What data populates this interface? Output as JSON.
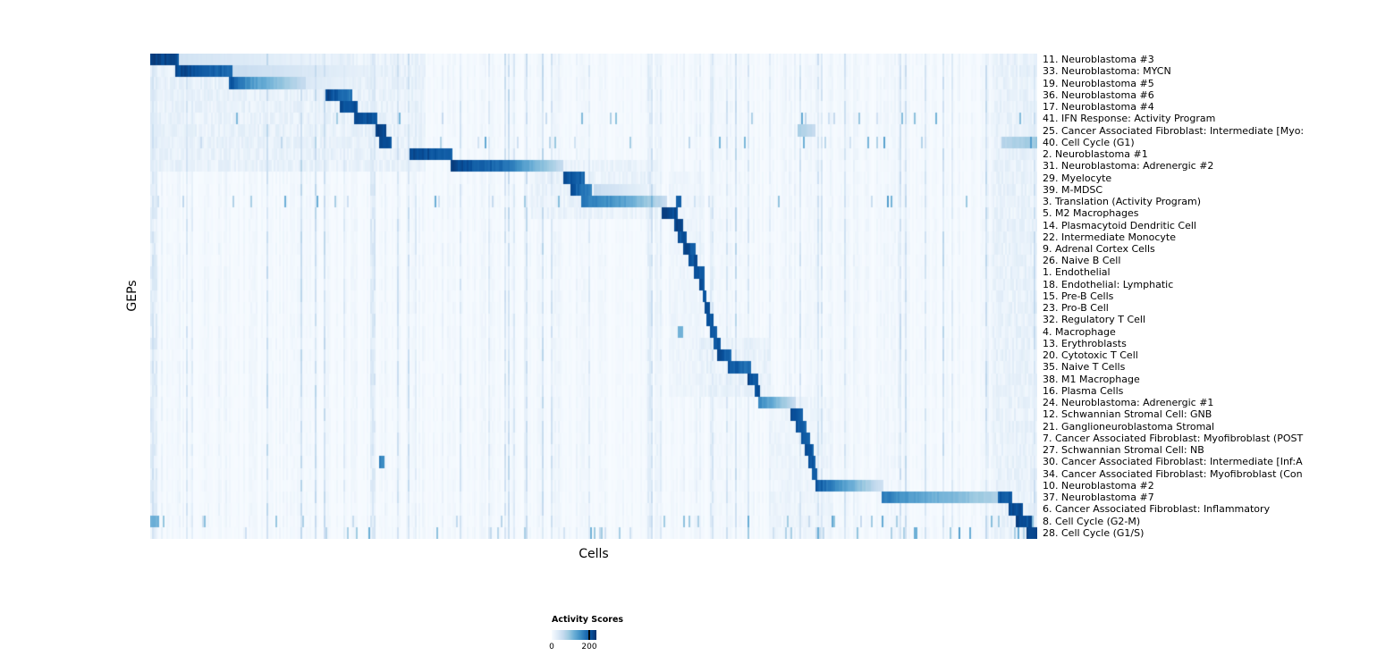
{
  "chart_data": {
    "type": "heatmap",
    "title": "",
    "xlabel": "Cells",
    "ylabel": "GEPs",
    "colorbar": {
      "title": "Activity Scores",
      "min": 0,
      "max": 200,
      "tick_max_pos": 0.84
    },
    "colormap_stops": [
      "#f7fbff",
      "#deebf7",
      "#c6dbef",
      "#9ecae1",
      "#6baed6",
      "#4292c6",
      "#2171b5",
      "#08519c",
      "#08306b"
    ],
    "noise_seed": 1234567,
    "noise_regions": [
      {
        "r0": 0,
        "r1": 10,
        "s": 0.0,
        "e": 0.31,
        "amp": 0.1
      },
      {
        "r0": 9,
        "r1": 14,
        "s": 0.43,
        "e": 0.57,
        "amp": 0.09
      },
      {
        "r0": 10,
        "r1": 29,
        "s": 0.585,
        "e": 0.625,
        "amp": 0.06
      },
      {
        "r0": 24,
        "r1": 29,
        "s": 0.62,
        "e": 0.7,
        "amp": 0.1
      },
      {
        "r0": 29,
        "r1": 41,
        "s": 0.7,
        "e": 0.77,
        "amp": 0.07
      },
      {
        "r0": 0,
        "r1": 41,
        "s": 0.95,
        "e": 1.0,
        "amp": 0.1
      },
      {
        "r0": 0,
        "r1": 41,
        "s": 0.0,
        "e": 0.008,
        "amp": 0.14
      }
    ],
    "rows": [
      {
        "label": "11. Neuroblastoma #3",
        "scatter": false,
        "segments": [
          {
            "s": 0.0,
            "e": 0.032,
            "v0": 1,
            "v1": 0.9
          },
          {
            "s": 0.032,
            "e": 0.22,
            "v0": 0.2,
            "v1": 0.04
          }
        ]
      },
      {
        "label": "33. Neuroblastoma: MYCN",
        "scatter": false,
        "segments": [
          {
            "s": 0.028,
            "e": 0.092,
            "v0": 0.95,
            "v1": 0.8
          },
          {
            "s": 0.092,
            "e": 0.28,
            "v0": 0.25,
            "v1": 0.04
          }
        ]
      },
      {
        "label": "19. Neuroblastoma #5",
        "scatter": false,
        "segments": [
          {
            "s": 0.088,
            "e": 0.115,
            "v0": 0.9,
            "v1": 0.6
          },
          {
            "s": 0.115,
            "e": 0.175,
            "v0": 0.6,
            "v1": 0.25
          },
          {
            "s": 0.175,
            "e": 0.24,
            "v0": 0.15,
            "v1": 0.05
          }
        ]
      },
      {
        "label": "36. Neuroblastoma #6",
        "scatter": false,
        "segments": [
          {
            "s": 0.197,
            "e": 0.228,
            "v0": 0.95,
            "v1": 0.75
          }
        ]
      },
      {
        "label": "17. Neuroblastoma #4",
        "scatter": false,
        "segments": [
          {
            "s": 0.213,
            "e": 0.234,
            "v0": 0.9,
            "v1": 0.9
          }
        ]
      },
      {
        "label": "41. IFN Response: Activity Program",
        "scatter": true,
        "segments": [
          {
            "s": 0.23,
            "e": 0.256,
            "v0": 0.95,
            "v1": 0.85
          }
        ]
      },
      {
        "label": "25. Cancer Associated Fibroblast: Intermediate [Myo:",
        "scatter": false,
        "segments": [
          {
            "s": 0.254,
            "e": 0.266,
            "v0": 0.95,
            "v1": 0.95
          },
          {
            "s": 0.73,
            "e": 0.75,
            "v0": 0.35,
            "v1": 0.25
          }
        ]
      },
      {
        "label": "40. Cell Cycle (G1)",
        "scatter": true,
        "segments": [
          {
            "s": 0.259,
            "e": 0.272,
            "v0": 0.9,
            "v1": 0.9
          },
          {
            "s": 0.96,
            "e": 1.0,
            "v0": 0.3,
            "v1": 0.4
          }
        ]
      },
      {
        "label": "2. Neuroblastoma #1",
        "scatter": false,
        "segments": [
          {
            "s": 0.292,
            "e": 0.34,
            "v0": 0.95,
            "v1": 0.85
          }
        ]
      },
      {
        "label": "31. Neuroblastoma: Adrenergic #2",
        "scatter": false,
        "segments": [
          {
            "s": 0.338,
            "e": 0.395,
            "v0": 0.95,
            "v1": 0.8
          },
          {
            "s": 0.395,
            "e": 0.466,
            "v0": 0.8,
            "v1": 0.25
          }
        ]
      },
      {
        "label": "29. Myelocyte",
        "scatter": false,
        "segments": [
          {
            "s": 0.466,
            "e": 0.489,
            "v0": 0.95,
            "v1": 0.8
          }
        ]
      },
      {
        "label": "39. M-MDSC",
        "scatter": false,
        "segments": [
          {
            "s": 0.474,
            "e": 0.498,
            "v0": 0.9,
            "v1": 0.7
          },
          {
            "s": 0.5,
            "e": 0.56,
            "v0": 0.25,
            "v1": 0.08
          }
        ]
      },
      {
        "label": "3. Translation (Activity Program)",
        "scatter": true,
        "segments": [
          {
            "s": 0.486,
            "e": 0.53,
            "v0": 0.75,
            "v1": 0.6
          },
          {
            "s": 0.53,
            "e": 0.582,
            "v0": 0.6,
            "v1": 0.25
          },
          {
            "s": 0.592,
            "e": 0.599,
            "v0": 0.85,
            "v1": 0.85
          }
        ]
      },
      {
        "label": "5. M2 Macrophages",
        "scatter": false,
        "segments": [
          {
            "s": 0.577,
            "e": 0.595,
            "v0": 1,
            "v1": 0.9
          }
        ]
      },
      {
        "label": "14. Plasmacytoid Dendritic Cell",
        "scatter": false,
        "segments": [
          {
            "s": 0.59,
            "e": 0.6,
            "v0": 0.95,
            "v1": 0.95
          }
        ]
      },
      {
        "label": "22. Intermediate Monocyte",
        "scatter": false,
        "segments": [
          {
            "s": 0.594,
            "e": 0.604,
            "v0": 0.9,
            "v1": 0.9
          }
        ]
      },
      {
        "label": "9. Adrenal Cortex Cells",
        "scatter": false,
        "segments": [
          {
            "s": 0.6,
            "e": 0.614,
            "v0": 0.95,
            "v1": 0.85
          }
        ]
      },
      {
        "label": "26. Naive B Cell",
        "scatter": false,
        "segments": [
          {
            "s": 0.607,
            "e": 0.617,
            "v0": 0.9,
            "v1": 0.9
          }
        ]
      },
      {
        "label": "1. Endothelial",
        "scatter": false,
        "segments": [
          {
            "s": 0.613,
            "e": 0.624,
            "v0": 0.95,
            "v1": 0.85
          }
        ]
      },
      {
        "label": "18. Endothelial: Lymphatic",
        "scatter": false,
        "segments": [
          {
            "s": 0.619,
            "e": 0.626,
            "v0": 0.9,
            "v1": 0.9
          }
        ]
      },
      {
        "label": "15. Pre-B Cells",
        "scatter": false,
        "segments": [
          {
            "s": 0.622,
            "e": 0.628,
            "v0": 0.9,
            "v1": 0.9
          }
        ]
      },
      {
        "label": "23. Pro-B Cell",
        "scatter": false,
        "segments": [
          {
            "s": 0.625,
            "e": 0.631,
            "v0": 0.9,
            "v1": 0.9
          }
        ]
      },
      {
        "label": "32. Regulatory T Cell",
        "scatter": false,
        "segments": [
          {
            "s": 0.627,
            "e": 0.636,
            "v0": 0.9,
            "v1": 0.85
          }
        ]
      },
      {
        "label": "4. Macrophage",
        "scatter": false,
        "segments": [
          {
            "s": 0.631,
            "e": 0.64,
            "v0": 0.9,
            "v1": 0.85
          },
          {
            "s": 0.594,
            "e": 0.6,
            "v0": 0.5,
            "v1": 0.5
          }
        ]
      },
      {
        "label": "13. Erythroblasts",
        "scatter": false,
        "segments": [
          {
            "s": 0.636,
            "e": 0.644,
            "v0": 0.9,
            "v1": 0.85
          }
        ]
      },
      {
        "label": "20. Cytotoxic T Cell",
        "scatter": false,
        "segments": [
          {
            "s": 0.64,
            "e": 0.656,
            "v0": 0.95,
            "v1": 0.8
          }
        ]
      },
      {
        "label": "35. Naive T Cells",
        "scatter": false,
        "segments": [
          {
            "s": 0.652,
            "e": 0.678,
            "v0": 0.9,
            "v1": 0.75
          }
        ]
      },
      {
        "label": "38. M1 Macrophage",
        "scatter": false,
        "segments": [
          {
            "s": 0.673,
            "e": 0.685,
            "v0": 0.95,
            "v1": 0.85
          }
        ]
      },
      {
        "label": "16. Plasma Cells",
        "scatter": false,
        "segments": [
          {
            "s": 0.681,
            "e": 0.688,
            "v0": 0.9,
            "v1": 0.9
          }
        ]
      },
      {
        "label": "24. Neuroblastoma: Adrenergic #1",
        "scatter": false,
        "segments": [
          {
            "s": 0.685,
            "e": 0.727,
            "v0": 0.7,
            "v1": 0.25
          }
        ]
      },
      {
        "label": "12. Schwannian Stromal Cell: GNB",
        "scatter": false,
        "segments": [
          {
            "s": 0.722,
            "e": 0.735,
            "v0": 0.95,
            "v1": 0.8
          }
        ]
      },
      {
        "label": "21. Ganglioneuroblastoma Stromal",
        "scatter": false,
        "segments": [
          {
            "s": 0.728,
            "e": 0.739,
            "v0": 0.9,
            "v1": 0.8
          }
        ]
      },
      {
        "label": "7. Cancer Associated Fibroblast: Myofibroblast (POST",
        "scatter": false,
        "segments": [
          {
            "s": 0.734,
            "e": 0.744,
            "v0": 0.9,
            "v1": 0.8
          }
        ]
      },
      {
        "label": "27. Schwannian Stromal Cell: NB",
        "scatter": false,
        "segments": [
          {
            "s": 0.738,
            "e": 0.747,
            "v0": 0.9,
            "v1": 0.85
          }
        ]
      },
      {
        "label": "30. Cancer Associated Fibroblast: Intermediate [Inf:A",
        "scatter": false,
        "segments": [
          {
            "s": 0.742,
            "e": 0.75,
            "v0": 0.9,
            "v1": 0.85
          },
          {
            "s": 0.259,
            "e": 0.264,
            "v0": 0.7,
            "v1": 0.7
          }
        ]
      },
      {
        "label": "34. Cancer Associated Fibroblast: Myofibroblast (Con",
        "scatter": false,
        "segments": [
          {
            "s": 0.745,
            "e": 0.752,
            "v0": 0.9,
            "v1": 0.85
          }
        ]
      },
      {
        "label": "10. Neuroblastoma #2",
        "scatter": false,
        "segments": [
          {
            "s": 0.749,
            "e": 0.78,
            "v0": 0.9,
            "v1": 0.6
          },
          {
            "s": 0.78,
            "e": 0.827,
            "v0": 0.6,
            "v1": 0.2
          }
        ]
      },
      {
        "label": "37. Neuroblastoma #7",
        "scatter": false,
        "segments": [
          {
            "s": 0.824,
            "e": 0.87,
            "v0": 0.75,
            "v1": 0.55
          },
          {
            "s": 0.87,
            "e": 0.97,
            "v0": 0.55,
            "v1": 0.3
          },
          {
            "s": 0.955,
            "e": 0.972,
            "v0": 0.85,
            "v1": 0.9
          }
        ]
      },
      {
        "label": "6. Cancer Associated Fibroblast: Inflammatory",
        "scatter": false,
        "segments": [
          {
            "s": 0.968,
            "e": 0.983,
            "v0": 0.95,
            "v1": 0.9
          }
        ]
      },
      {
        "label": "8. Cell Cycle (G2-M)",
        "scatter": true,
        "segments": [
          {
            "s": 0.975,
            "e": 0.993,
            "v0": 0.95,
            "v1": 0.9
          },
          {
            "s": 0.0,
            "e": 0.01,
            "v0": 0.5,
            "v1": 0.5
          }
        ]
      },
      {
        "label": "28. Cell Cycle (G1/S)",
        "scatter": true,
        "segments": [
          {
            "s": 0.988,
            "e": 1.0,
            "v0": 0.95,
            "v1": 1
          }
        ]
      }
    ]
  }
}
